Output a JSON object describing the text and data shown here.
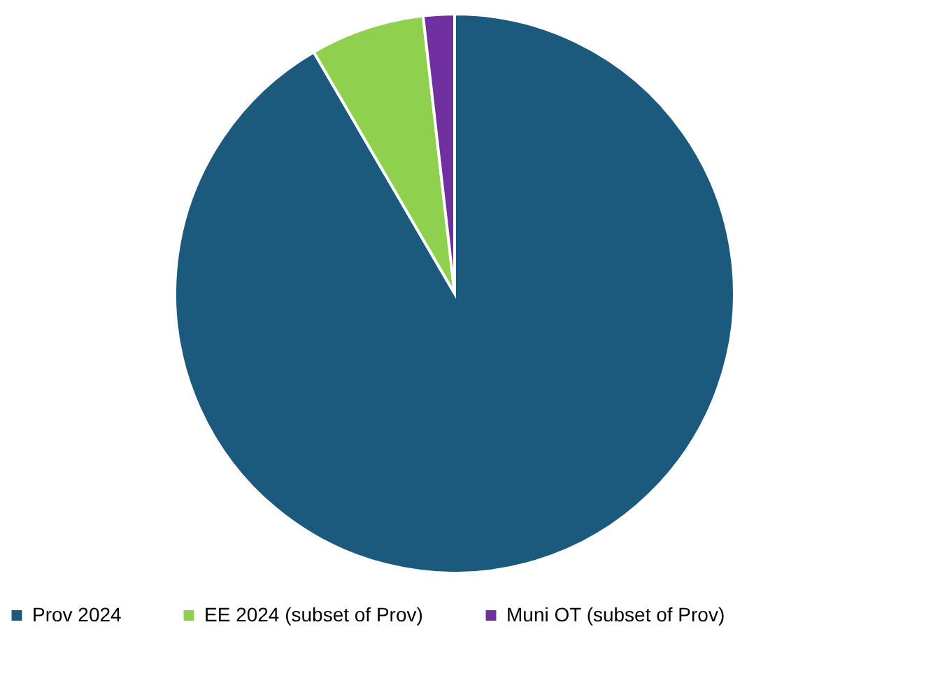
{
  "chart_data": {
    "type": "pie",
    "categories": [
      "Prov 2024",
      "EE 2024 (subset of Prov)",
      "Muni OT (subset of Prov)"
    ],
    "values": [
      91.6,
      6.6,
      1.8
    ],
    "colors": [
      "#1b5a7c",
      "#8fd14f",
      "#7030a0"
    ],
    "legend": "bottom"
  }
}
